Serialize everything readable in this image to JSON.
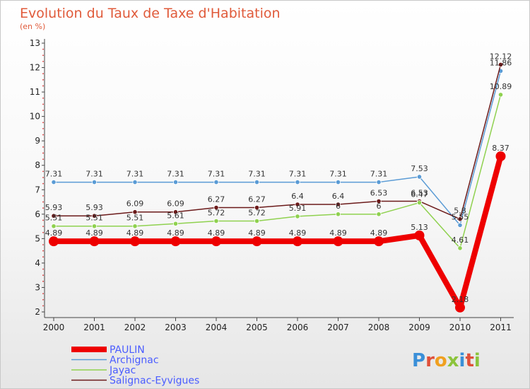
{
  "title": "Evolution du Taux de Taxe d'Habitation",
  "unit": "(en %)",
  "brand": "Proxiti",
  "chart_data": {
    "type": "line",
    "x": [
      "2000",
      "2001",
      "2002",
      "2003",
      "2004",
      "2005",
      "2006",
      "2007",
      "2008",
      "2009",
      "2010",
      "2011"
    ],
    "y_ticks": [
      2,
      3,
      4,
      5,
      6,
      7,
      8,
      9,
      10,
      11,
      12,
      13
    ],
    "ylim": [
      2,
      13
    ],
    "grid": false,
    "legend_position": "bottom-left",
    "series": [
      {
        "name": "PAULIN",
        "color": "#ee0000",
        "values": [
          4.89,
          4.89,
          4.89,
          4.89,
          4.89,
          4.89,
          4.89,
          4.89,
          4.89,
          5.13,
          2.18,
          8.37
        ],
        "labels": [
          "4.89",
          "4.89",
          "4.89",
          "4.89",
          "4.89",
          "4.89",
          "4.89",
          "4.89",
          "4.89",
          "5.13",
          "2.18",
          "8.37"
        ]
      },
      {
        "name": "Archignac",
        "color": "#5a9bd5",
        "values": [
          7.31,
          7.31,
          7.31,
          7.31,
          7.31,
          7.31,
          7.31,
          7.31,
          7.31,
          7.53,
          5.55,
          11.86
        ],
        "labels": [
          "7.31",
          "7.31",
          "7.31",
          "7.31",
          "7.31",
          "7.31",
          "7.31",
          "7.31",
          "7.31",
          "7.53",
          "5.55",
          "11.86"
        ]
      },
      {
        "name": "Jayac",
        "color": "#8fd14f",
        "values": [
          5.51,
          5.51,
          5.51,
          5.61,
          5.72,
          5.72,
          5.91,
          6,
          6,
          6.47,
          4.61,
          10.89
        ],
        "labels": [
          "5.51",
          "5.51",
          "5.51",
          "5.61",
          "5.72",
          "5.72",
          "5.91",
          "6",
          "6",
          "6.47",
          "4.61",
          "10.89"
        ]
      },
      {
        "name": "Salignac-Eyvigues",
        "color": "#6b1a1a",
        "values": [
          5.93,
          5.93,
          6.09,
          6.09,
          6.27,
          6.27,
          6.4,
          6.4,
          6.53,
          6.53,
          5.8,
          12.12
        ],
        "labels": [
          "5.93",
          "5.93",
          "6.09",
          "6.09",
          "6.27",
          "6.27",
          "6.4",
          "6.4",
          "6.53",
          "6.53",
          "5.8",
          "12.12"
        ]
      }
    ]
  }
}
